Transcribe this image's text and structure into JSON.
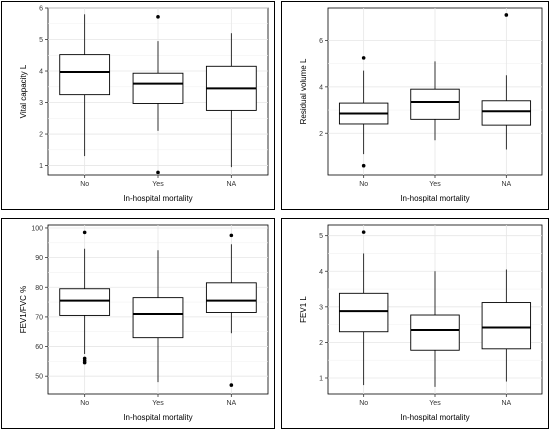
{
  "chart_data": [
    {
      "type": "box",
      "xlabel": "In-hospital mortality",
      "ylabel": "Vital capacity L",
      "ylim": [
        0.7,
        6.0
      ],
      "yticks": [
        1,
        2,
        3,
        4,
        5,
        6
      ],
      "grid": true,
      "categories": [
        "No",
        "Yes",
        "NA"
      ],
      "boxes": [
        {
          "min": 1.3,
          "q1": 3.25,
          "median": 3.97,
          "q3": 4.52,
          "max": 5.8,
          "outliers": []
        },
        {
          "min": 2.1,
          "q1": 2.97,
          "median": 3.6,
          "q3": 3.93,
          "max": 4.95,
          "outliers": [
            5.72,
            0.78
          ]
        },
        {
          "min": 0.95,
          "q1": 2.75,
          "median": 3.45,
          "q3": 4.15,
          "max": 5.2,
          "outliers": []
        }
      ]
    },
    {
      "type": "box",
      "xlabel": "In-hospital mortality",
      "ylabel": "Residual volume L",
      "ylim": [
        0.2,
        7.4
      ],
      "yticks": [
        2,
        4,
        6
      ],
      "grid": true,
      "categories": [
        "No",
        "Yes",
        "NA"
      ],
      "boxes": [
        {
          "min": 1.1,
          "q1": 2.4,
          "median": 2.85,
          "q3": 3.3,
          "max": 4.7,
          "outliers": [
            5.25,
            0.6
          ]
        },
        {
          "min": 1.7,
          "q1": 2.6,
          "median": 3.35,
          "q3": 3.9,
          "max": 5.1,
          "outliers": []
        },
        {
          "min": 1.3,
          "q1": 2.35,
          "median": 2.95,
          "q3": 3.4,
          "max": 4.5,
          "outliers": [
            7.1
          ]
        }
      ]
    },
    {
      "type": "box",
      "xlabel": "In-hospital mortality",
      "ylabel": "FEV1/FVC %",
      "ylim": [
        44,
        101
      ],
      "yticks": [
        50,
        60,
        70,
        80,
        90,
        100
      ],
      "grid": true,
      "categories": [
        "No",
        "Yes",
        "NA"
      ],
      "boxes": [
        {
          "min": 57.5,
          "q1": 70.5,
          "median": 75.5,
          "q3": 79.5,
          "max": 93,
          "outliers": [
            98.5,
            56,
            55.3,
            54.6
          ]
        },
        {
          "min": 48,
          "q1": 63,
          "median": 71,
          "q3": 76.5,
          "max": 92.5,
          "outliers": []
        },
        {
          "min": 64.5,
          "q1": 71.5,
          "median": 75.5,
          "q3": 81.5,
          "max": 94.5,
          "outliers": [
            97.5,
            47
          ]
        }
      ]
    },
    {
      "type": "box",
      "xlabel": "In-hospital mortality",
      "ylabel": "FEV1 L",
      "ylim": [
        0.55,
        5.3
      ],
      "yticks": [
        1,
        2,
        3,
        4,
        5
      ],
      "grid": true,
      "categories": [
        "No",
        "Yes",
        "NA"
      ],
      "boxes": [
        {
          "min": 0.8,
          "q1": 2.3,
          "median": 2.88,
          "q3": 3.38,
          "max": 4.5,
          "outliers": [
            5.1
          ]
        },
        {
          "min": 0.75,
          "q1": 1.78,
          "median": 2.35,
          "q3": 2.77,
          "max": 4.0,
          "outliers": []
        },
        {
          "min": 0.9,
          "q1": 1.82,
          "median": 2.42,
          "q3": 3.12,
          "max": 4.05,
          "outliers": []
        }
      ]
    }
  ]
}
